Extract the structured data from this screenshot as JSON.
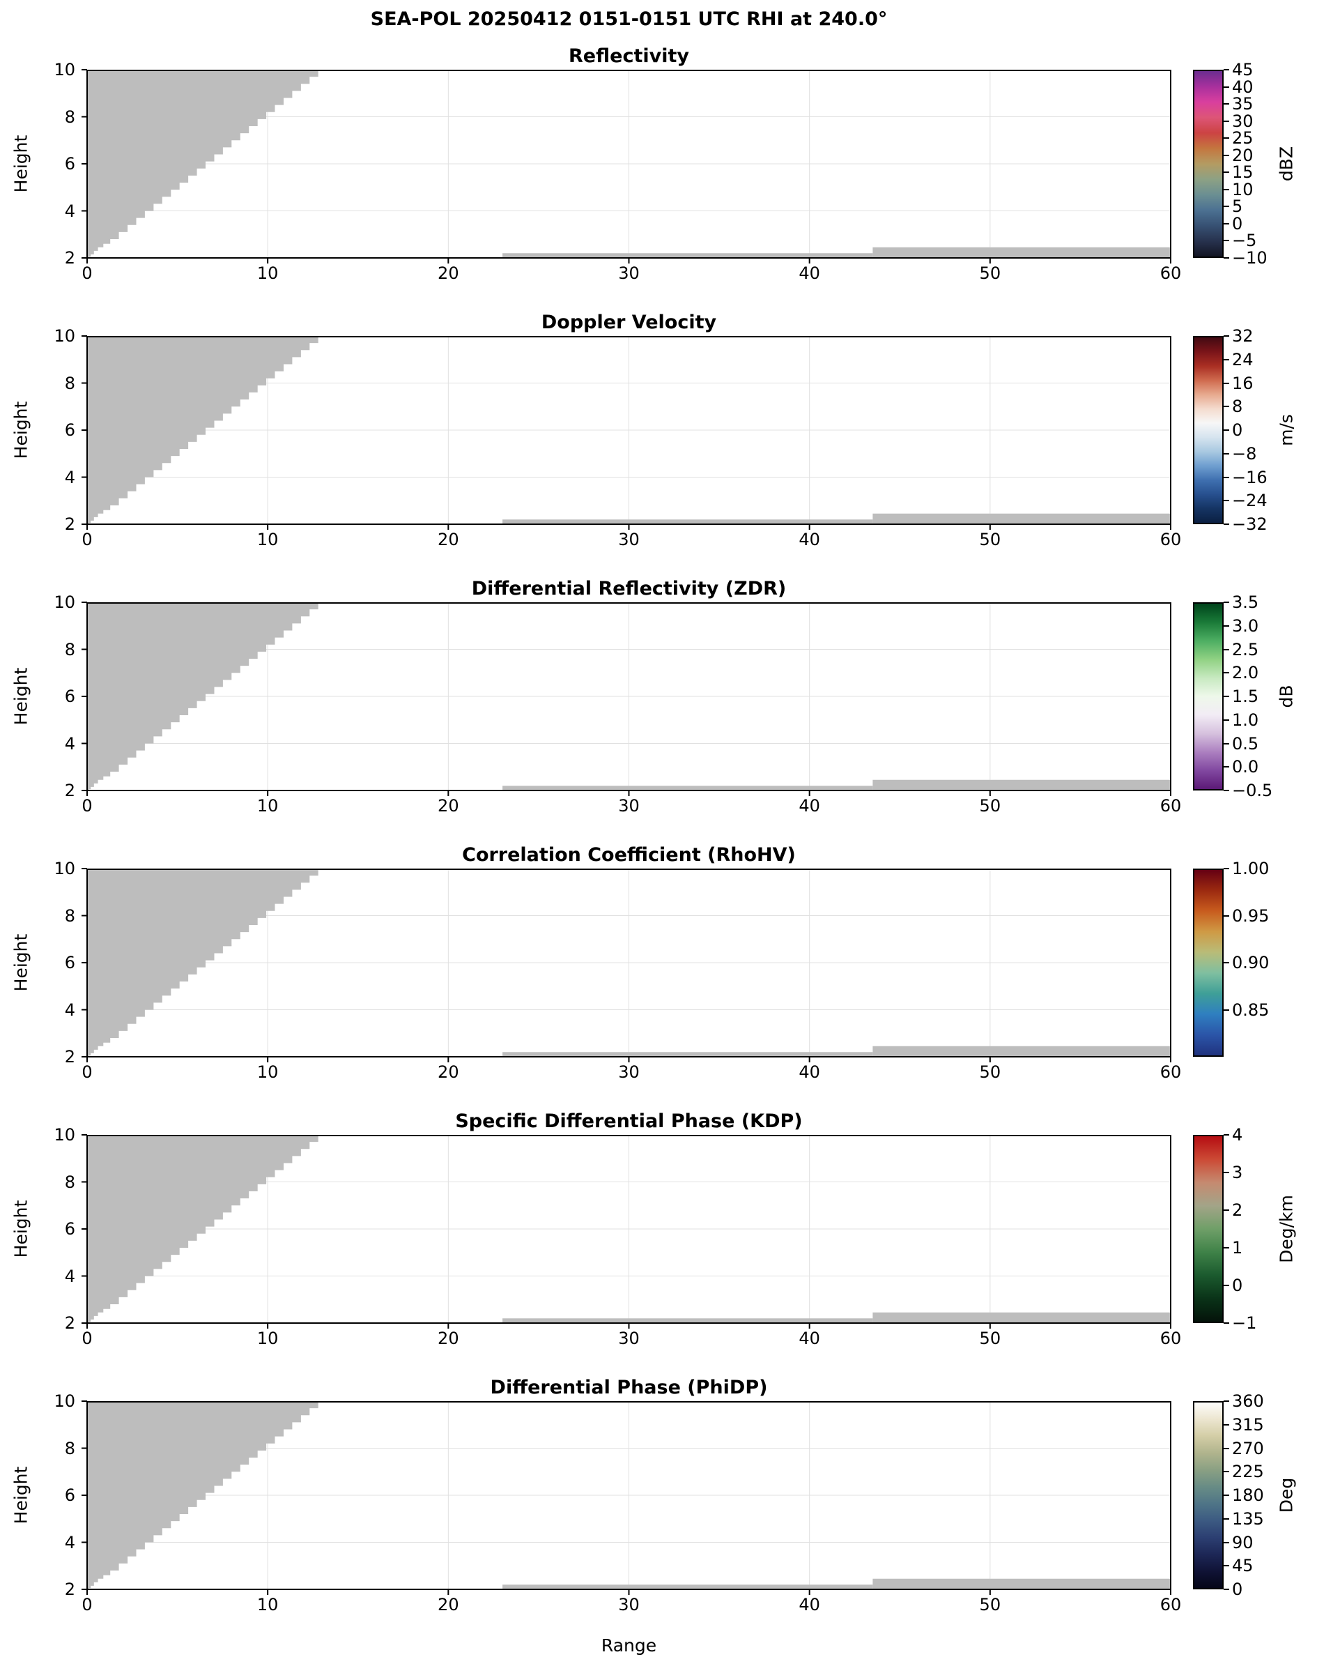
{
  "chart_data": {
    "type": "heatmap",
    "suptitle": "SEA-POL 20250412 0151-0151 UTC RHI at 240.0°",
    "xlabel": "Range",
    "ylabel": "Height",
    "xlim": [
      0,
      60
    ],
    "ylim": [
      2,
      10
    ],
    "x_ticks": {
      "values": [
        0,
        10,
        20,
        30,
        40,
        50,
        60
      ],
      "labels": [
        "0",
        "10",
        "20",
        "30",
        "40",
        "50",
        "60"
      ]
    },
    "y_ticks": {
      "values": [
        2,
        4,
        6,
        8,
        10
      ],
      "labels": [
        "2",
        "4",
        "6",
        "8",
        "10"
      ]
    },
    "grid": true,
    "legend": "none",
    "no_data_color": "#bdbdbd",
    "grid_color": "#e0e0e0",
    "data_values_note": "No colored radar values are visible; all six panels show only identical gray no-data/masked regions.",
    "mask_regions": {
      "beam_blockage_wedge": [
        [
          0,
          10
        ],
        [
          12.8,
          10
        ],
        [
          12.8,
          9.7
        ],
        [
          12.32,
          9.7
        ],
        [
          12.32,
          9.4
        ],
        [
          11.84,
          9.4
        ],
        [
          11.84,
          9.1
        ],
        [
          11.36,
          9.1
        ],
        [
          11.36,
          8.8
        ],
        [
          10.88,
          8.8
        ],
        [
          10.88,
          8.5
        ],
        [
          10.4,
          8.5
        ],
        [
          10.4,
          8.2
        ],
        [
          9.92,
          8.2
        ],
        [
          9.92,
          7.9
        ],
        [
          9.44,
          7.9
        ],
        [
          9.44,
          7.6
        ],
        [
          8.96,
          7.6
        ],
        [
          8.96,
          7.3
        ],
        [
          8.48,
          7.3
        ],
        [
          8.48,
          7.0
        ],
        [
          8.0,
          7.0
        ],
        [
          8.0,
          6.7
        ],
        [
          7.52,
          6.7
        ],
        [
          7.52,
          6.4
        ],
        [
          7.04,
          6.4
        ],
        [
          7.04,
          6.1
        ],
        [
          6.56,
          6.1
        ],
        [
          6.56,
          5.8
        ],
        [
          6.08,
          5.8
        ],
        [
          6.08,
          5.5
        ],
        [
          5.6,
          5.5
        ],
        [
          5.6,
          5.2
        ],
        [
          5.12,
          5.2
        ],
        [
          5.12,
          4.9
        ],
        [
          4.64,
          4.9
        ],
        [
          4.64,
          4.6
        ],
        [
          4.16,
          4.6
        ],
        [
          4.16,
          4.3
        ],
        [
          3.68,
          4.3
        ],
        [
          3.68,
          4.0
        ],
        [
          3.2,
          4.0
        ],
        [
          3.2,
          3.7
        ],
        [
          2.72,
          3.7
        ],
        [
          2.72,
          3.4
        ],
        [
          2.24,
          3.4
        ],
        [
          2.24,
          3.1
        ],
        [
          1.76,
          3.1
        ],
        [
          1.76,
          2.8
        ],
        [
          1.28,
          2.8
        ],
        [
          1.28,
          2.6
        ],
        [
          0.9,
          2.6
        ],
        [
          0.9,
          2.45
        ],
        [
          0.6,
          2.45
        ],
        [
          0.6,
          2.3
        ],
        [
          0.38,
          2.3
        ],
        [
          0.38,
          2.15
        ],
        [
          0.2,
          2.15
        ],
        [
          0.2,
          2.05
        ],
        [
          0.1,
          2.05
        ],
        [
          0.1,
          2.0
        ],
        [
          0,
          2.0
        ]
      ],
      "ground_strip_thin": [
        [
          23,
          2.2
        ],
        [
          43.5,
          2.2
        ],
        [
          43.5,
          2.0
        ],
        [
          23,
          2.0
        ]
      ],
      "ground_strip_thick": [
        [
          43.5,
          2.45
        ],
        [
          60,
          2.45
        ],
        [
          60,
          2.0
        ],
        [
          43.5,
          2.0
        ]
      ]
    },
    "panels": [
      {
        "title": "Reflectivity",
        "colorbar": {
          "unit": "dBZ",
          "min": -10,
          "max": 45,
          "tick_values": [
            45,
            40,
            35,
            30,
            25,
            20,
            15,
            10,
            5,
            0,
            -5,
            -10
          ],
          "tick_labels": [
            "45",
            "40",
            "35",
            "30",
            "25",
            "20",
            "15",
            "10",
            "5",
            "0",
            "−5",
            "−10"
          ],
          "colors_top_to_bottom": [
            "#6b2d90",
            "#a8309d",
            "#d93f9e",
            "#dd5577",
            "#cc4343",
            "#c4763f",
            "#b49b62",
            "#8da184",
            "#6b8f92",
            "#4c7192",
            "#375173",
            "#27324e",
            "#131523"
          ]
        }
      },
      {
        "title": "Doppler Velocity",
        "colorbar": {
          "unit": "m/s",
          "min": -32,
          "max": 32,
          "tick_values": [
            32,
            24,
            16,
            8,
            0,
            -8,
            -16,
            -24,
            -32
          ],
          "tick_labels": [
            "32",
            "24",
            "16",
            "8",
            "0",
            "−8",
            "−16",
            "−24",
            "−32"
          ],
          "colors_top_to_bottom": [
            "#420a12",
            "#7a1419",
            "#a92e23",
            "#cf6a4e",
            "#e7a98e",
            "#f4dbce",
            "#f7f7f7",
            "#d6e4ef",
            "#a9c9e1",
            "#6f9fd0",
            "#3f70b0",
            "#27508f",
            "#153463",
            "#0b2042"
          ]
        }
      },
      {
        "title": "Differential Reflectivity (ZDR)",
        "colorbar": {
          "unit": "dB",
          "min": -0.5,
          "max": 3.5,
          "tick_values": [
            3.5,
            3.0,
            2.5,
            2.0,
            1.5,
            1.0,
            0.5,
            0.0,
            -0.5
          ],
          "tick_labels": [
            "3.5",
            "3.0",
            "2.5",
            "2.0",
            "1.5",
            "1.0",
            "0.5",
            "0.0",
            "−0.5"
          ],
          "colors_top_to_bottom": [
            "#00441b",
            "#1a7a38",
            "#4dae62",
            "#90d183",
            "#c7e9c0",
            "#eef8ea",
            "#f2ecf5",
            "#d6c1de",
            "#ac80c0",
            "#8148a0",
            "#5c1a77"
          ]
        }
      },
      {
        "title": "Correlation Coefficient (RhoHV)",
        "colorbar": {
          "unit": "",
          "min": 0.8,
          "max": 1.0,
          "tick_values": [
            1.0,
            0.95,
            0.9,
            0.85
          ],
          "tick_labels": [
            "1.00",
            "0.95",
            "0.90",
            "0.85"
          ],
          "colors_top_to_bottom": [
            "#650013",
            "#9c2a10",
            "#c85c1e",
            "#cf9a45",
            "#b9bc78",
            "#7fbfa0",
            "#3f9f97",
            "#2f7fc0",
            "#2b55a8",
            "#20337f"
          ]
        }
      },
      {
        "title": "Specific Differential Phase (KDP)",
        "colorbar": {
          "unit": "Deg/km",
          "min": -1,
          "max": 4,
          "tick_values": [
            4,
            3,
            2,
            1,
            0,
            -1
          ],
          "tick_labels": [
            "4",
            "3",
            "2",
            "1",
            "0",
            "−1"
          ],
          "colors_top_to_bottom": [
            "#b50d12",
            "#cc4a35",
            "#c58a70",
            "#a3a488",
            "#6f9f68",
            "#3f8248",
            "#1b5a2e",
            "#0a3318",
            "#04130a"
          ]
        }
      },
      {
        "title": "Differential Phase (PhiDP)",
        "colorbar": {
          "unit": "Deg",
          "min": 0,
          "max": 360,
          "tick_values": [
            360,
            315,
            270,
            225,
            180,
            135,
            90,
            45,
            0
          ],
          "tick_labels": [
            "360",
            "315",
            "270",
            "225",
            "180",
            "135",
            "90",
            "45",
            "0"
          ],
          "colors_top_to_bottom": [
            "#fdfdfb",
            "#ece5cf",
            "#d3cda6",
            "#b0b48d",
            "#8aa083",
            "#688c85",
            "#4f7587",
            "#3c5a82",
            "#2c3f72",
            "#1d2756",
            "#101336",
            "#050618"
          ]
        }
      }
    ]
  }
}
